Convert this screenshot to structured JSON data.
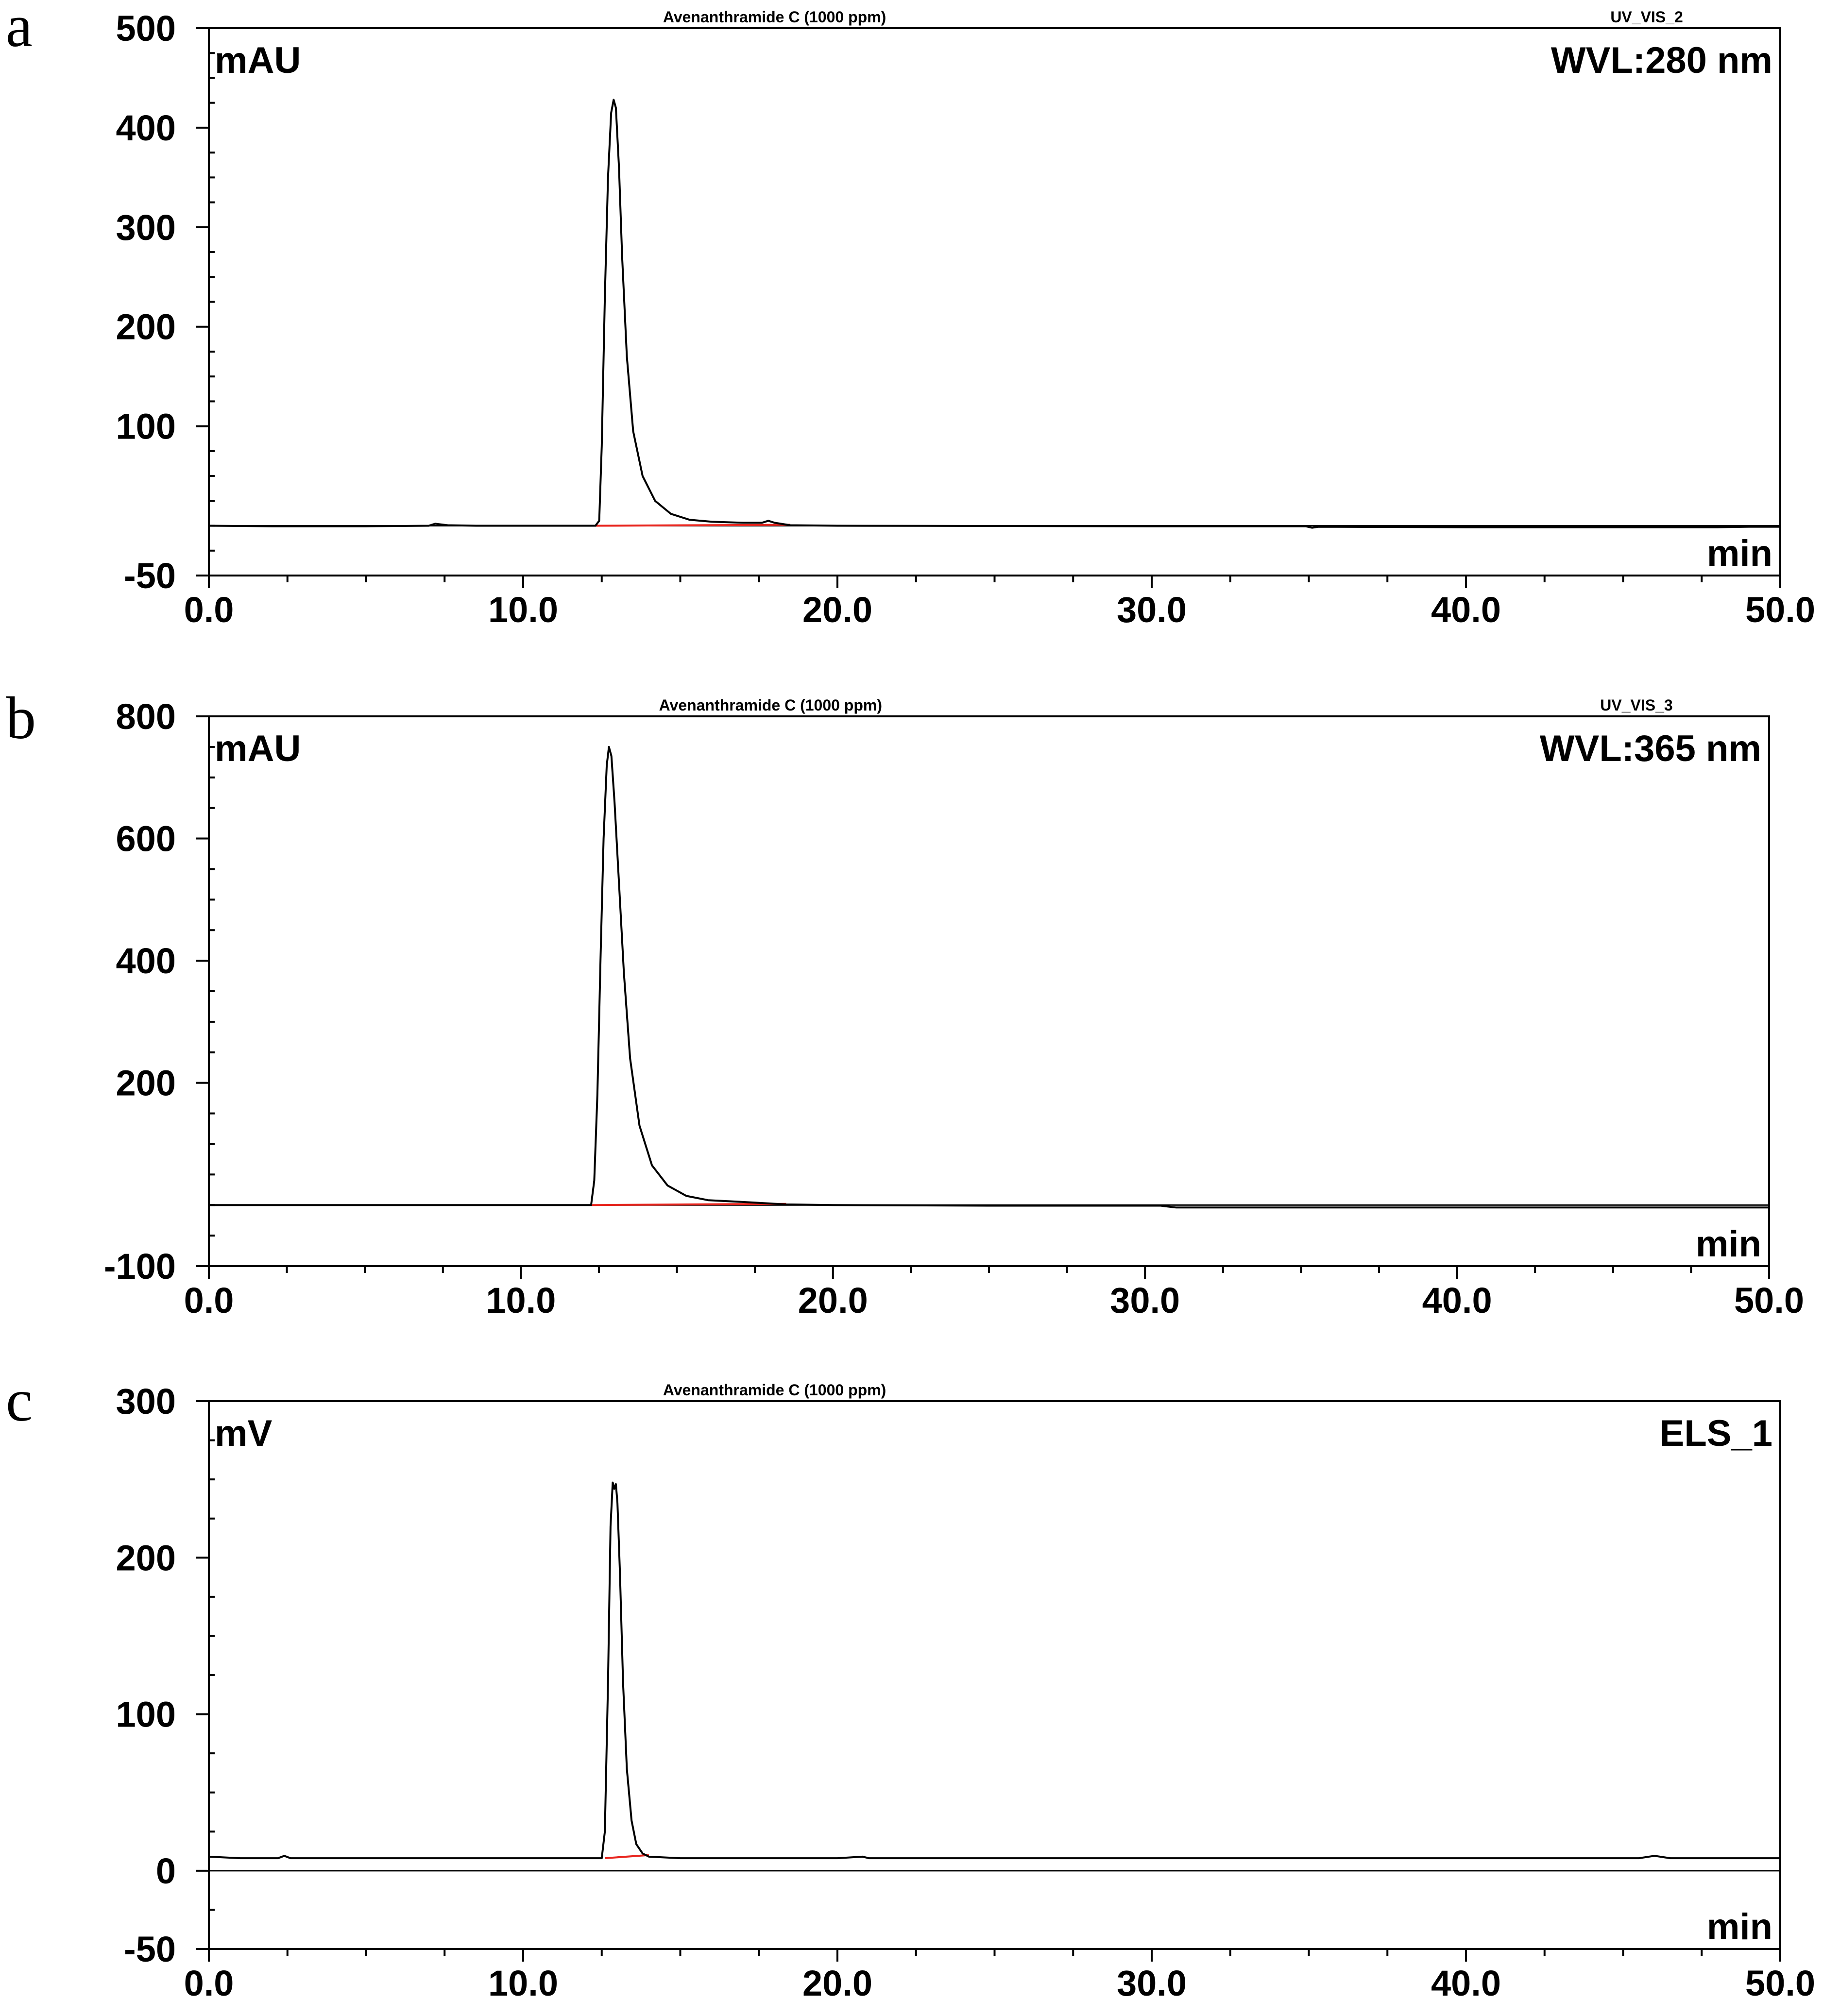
{
  "chart_data": [
    {
      "panel_label": "a",
      "type": "line",
      "title": "Avenanthramide C (1000 ppm)",
      "channel": "UV_VIS_2",
      "detector_label": "WVL:280 nm",
      "ylabel": "mAU",
      "xlabel": "min",
      "xlim": [
        0,
        50
      ],
      "ylim": [
        -50,
        500
      ],
      "x_ticks": [
        0,
        10,
        20,
        30,
        40,
        50
      ],
      "x_tick_labels": [
        "0.0",
        "10.0",
        "20.0",
        "30.0",
        "40.0",
        "50.0"
      ],
      "y_ticks": [
        -50,
        100,
        200,
        300,
        400,
        500
      ],
      "y_tick_labels": [
        "-50",
        "100",
        "200",
        "300",
        "400",
        "500"
      ],
      "trace_color": "#000000",
      "baseline_color": "#e8251e",
      "series": [
        {
          "x": [
            0.0,
            2.0,
            5.0,
            7.0,
            7.2,
            7.6,
            8.5,
            11.0,
            12.0,
            12.3,
            12.42,
            12.5,
            12.6,
            12.7,
            12.8,
            12.88,
            12.95,
            13.05,
            13.15,
            13.3,
            13.5,
            13.8,
            14.2,
            14.7,
            15.3,
            16.0,
            17.0,
            17.6,
            17.8,
            18.0,
            18.5,
            20.0,
            30.0,
            34.9,
            35.1,
            35.3,
            40.0,
            48.0,
            49.0,
            50.0
          ],
          "y": [
            0.0,
            -0.5,
            -0.5,
            0.0,
            2.0,
            0.5,
            0.0,
            0.0,
            0.0,
            0.0,
            5.0,
            80.0,
            230.0,
            350.0,
            415.0,
            428.0,
            420.0,
            360.0,
            270.0,
            170.0,
            95.0,
            50.0,
            25.0,
            12.0,
            6.0,
            4.0,
            3.0,
            3.0,
            5.0,
            3.0,
            0.5,
            0.0,
            -0.5,
            -0.5,
            -2.0,
            -1.0,
            -1.5,
            -1.5,
            -1.0,
            -1.0
          ]
        }
      ],
      "integration_baseline": {
        "x": [
          12.3,
          18.5
        ],
        "y": [
          0.0,
          1.0
        ]
      }
    },
    {
      "panel_label": "b",
      "type": "line",
      "title": "Avenanthramide C (1000 ppm)",
      "channel": "UV_VIS_3",
      "detector_label": "WVL:365 nm",
      "ylabel": "mAU",
      "xlabel": "min",
      "xlim": [
        0,
        50
      ],
      "ylim": [
        -100,
        800
      ],
      "x_ticks": [
        0,
        10,
        20,
        30,
        40,
        50
      ],
      "x_tick_labels": [
        "0.0",
        "10.0",
        "20.0",
        "30.0",
        "40.0",
        "50.0"
      ],
      "y_ticks": [
        -100,
        200,
        400,
        600,
        800
      ],
      "y_tick_labels": [
        "-100",
        "200",
        "400",
        "600",
        "800"
      ],
      "trace_color": "#000000",
      "baseline_color": "#e8251e",
      "series": [
        {
          "x": [
            0.0,
            5.0,
            10.0,
            12.0,
            12.25,
            12.35,
            12.45,
            12.55,
            12.65,
            12.75,
            12.82,
            12.9,
            13.0,
            13.15,
            13.3,
            13.5,
            13.8,
            14.2,
            14.7,
            15.3,
            16.0,
            17.5,
            18.5,
            20.0,
            25.0,
            30.5,
            31.0,
            35.0,
            40.0,
            50.0
          ],
          "y": [
            0.0,
            0.0,
            0.0,
            0.0,
            0.0,
            40.0,
            180.0,
            400.0,
            600.0,
            720.0,
            750.0,
            735.0,
            660.0,
            520.0,
            380.0,
            240.0,
            130.0,
            65.0,
            32.0,
            15.0,
            8.0,
            4.0,
            1.0,
            0.0,
            -1.0,
            -1.0,
            -4.0,
            -4.0,
            -4.0,
            -4.0
          ]
        }
      ],
      "integration_baseline": {
        "x": [
          12.25,
          18.5
        ],
        "y": [
          0.0,
          2.0
        ]
      }
    },
    {
      "panel_label": "c",
      "type": "line",
      "title": "Avenanthramide C (1000 ppm)",
      "channel": "",
      "detector_label": "ELS_1",
      "ylabel": "mV",
      "xlabel": "min",
      "xlim": [
        0,
        50
      ],
      "ylim": [
        -50,
        300
      ],
      "x_ticks": [
        0,
        10,
        20,
        30,
        40,
        50
      ],
      "x_tick_labels": [
        "0.0",
        "10.0",
        "20.0",
        "30.0",
        "40.0",
        "50.0"
      ],
      "y_ticks": [
        -50,
        0,
        100,
        200,
        300
      ],
      "y_tick_labels": [
        "-50",
        "0",
        "100",
        "200",
        "300"
      ],
      "trace_color": "#000000",
      "baseline_color": "#e8251e",
      "series": [
        {
          "x": [
            0.0,
            1.0,
            2.2,
            2.4,
            2.6,
            5.0,
            10.0,
            12.5,
            12.6,
            12.7,
            12.78,
            12.85,
            12.9,
            12.95,
            13.0,
            13.08,
            13.18,
            13.3,
            13.45,
            13.6,
            13.8,
            14.0,
            15.0,
            20.0,
            20.8,
            21.0,
            30.0,
            40.0,
            45.5,
            46.0,
            46.5,
            50.0
          ],
          "y": [
            9.0,
            8.0,
            8.0,
            9.5,
            8.0,
            8.0,
            8.0,
            8.0,
            25.0,
            120.0,
            220.0,
            248.0,
            244.0,
            247.0,
            235.0,
            190.0,
            120.0,
            65.0,
            32.0,
            17.0,
            11.0,
            9.0,
            8.0,
            8.0,
            9.0,
            8.0,
            8.0,
            8.0,
            8.0,
            9.5,
            8.0,
            8.0
          ]
        }
      ],
      "integration_baseline": {
        "x": [
          12.6,
          14.0
        ],
        "y": [
          8.0,
          10.0
        ]
      }
    }
  ]
}
